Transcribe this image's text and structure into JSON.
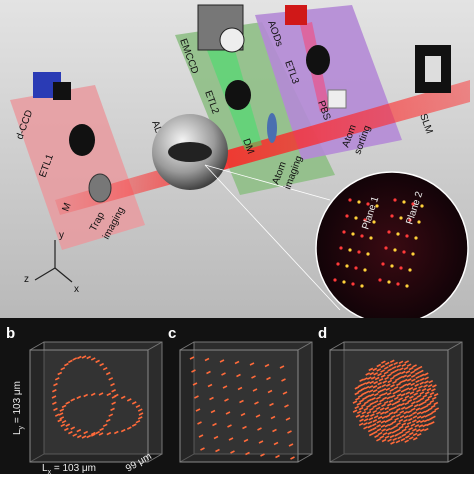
{
  "panel_a": {
    "trap_region": {
      "device": "d-CCD",
      "lens": "ETL1",
      "mirror": "M",
      "title": [
        "Trap",
        "imaging"
      ]
    },
    "center": {
      "lens": "AL"
    },
    "imaging_region": {
      "camera": "EMCCD",
      "lens": "ETL2",
      "mirror": "DM",
      "title": [
        "Atom",
        "imaging"
      ]
    },
    "sorting_region": {
      "device": "AODs",
      "lens": "ETL3",
      "splitter": "PBS",
      "title": [
        "Atom",
        "sorting"
      ]
    },
    "modulator": "SLM",
    "inset": {
      "plane_1": "Plane 1",
      "plane_2": "Plane 2"
    },
    "axes": {
      "y": "y",
      "z": "z",
      "x": "x"
    }
  },
  "panels": [
    {
      "letter": "b",
      "ly": {
        "symbol": "L",
        "sub": "y",
        "rest": " = 103 μm"
      },
      "lx": {
        "symbol": "L",
        "sub": "x",
        "rest": " = 103 μm"
      },
      "lz": "99 μm"
    },
    {
      "letter": "c"
    },
    {
      "letter": "d"
    }
  ]
}
